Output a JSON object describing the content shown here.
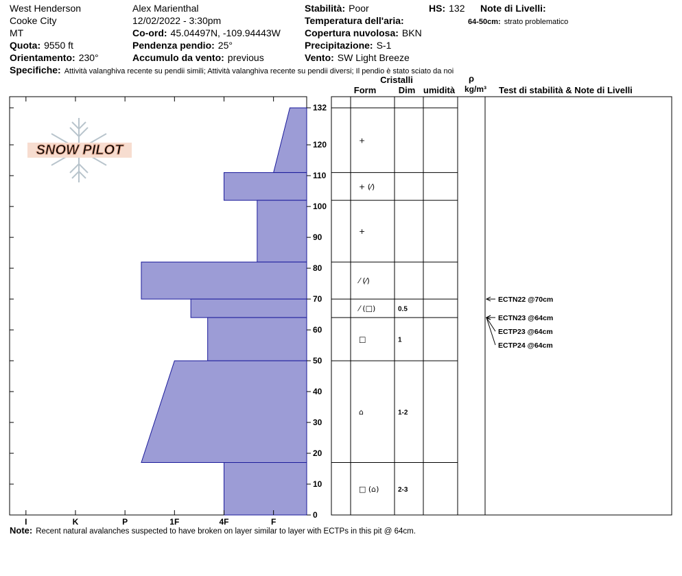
{
  "header": {
    "site": "West Henderson",
    "area": "Cooke City",
    "state": "MT",
    "elevation": {
      "label": "Quota:",
      "value": "9550 ft"
    },
    "aspect": {
      "label": "Orientamento:",
      "value": "230°"
    },
    "observer": "Alex Marienthal",
    "datetime": "12/02/2022 - 3:30pm",
    "coordinates": {
      "label": "Co-ord:",
      "value": "45.04497N, -109.94443W"
    },
    "slope": {
      "label": "Pendenza pendio:",
      "value": "25°"
    },
    "wind_loading": {
      "label": "Accumulo da vento:",
      "value": "previous"
    },
    "stability": {
      "label": "Stabilità:",
      "value": "Poor"
    },
    "hs": {
      "label": "HS:",
      "value": 132
    },
    "air_temperature": {
      "label": "Temperatura dell'aria:"
    },
    "sky": {
      "label": "Copertura nuvolosa:",
      "value": "BKN"
    },
    "precipitation": {
      "label": "Precipitazione:",
      "value": "S-1"
    },
    "wind": {
      "label": "Vento:",
      "value": "SW Light Breeze"
    },
    "layer_notes": {
      "label": "Note di Livelli:",
      "items": [
        {
          "label": "64-50cm:",
          "value": "strato problematico"
        }
      ]
    },
    "specifics": {
      "label": "Specifiche:",
      "value": "Attività valanghiva recente su pendii simili;  Attività valanghiva recente su pendii diversi;  Il pendio è stato sciato da noi"
    }
  },
  "logo": "SNOW PILOT",
  "chart_data": {
    "type": "profile",
    "color": "#9c9cd6",
    "edge_color": "#1a1a9a",
    "xlim": [
      6.33,
      0.33
    ],
    "xticks": [
      {
        "value": 6,
        "label": "I"
      },
      {
        "value": 5,
        "label": "K"
      },
      {
        "value": 4,
        "label": "P"
      },
      {
        "value": 3,
        "label": "1F"
      },
      {
        "value": 2,
        "label": "4F"
      },
      {
        "value": 1,
        "label": "F"
      }
    ],
    "ylim": [
      0,
      135.6
    ],
    "yticks": [
      0,
      10,
      20,
      30,
      40,
      50,
      60,
      70,
      80,
      90,
      100,
      110,
      120,
      132
    ],
    "layers": [
      {
        "top": 132,
        "bottom": 111,
        "hardness_top": 0.67,
        "hardness_bottom": 1
      },
      {
        "top": 111,
        "bottom": 102,
        "hardness_top": 2,
        "hardness_bottom": 2
      },
      {
        "top": 102,
        "bottom": 82,
        "hardness_top": 1.33,
        "hardness_bottom": 1.33
      },
      {
        "top": 82,
        "bottom": 70,
        "hardness_top": 3.67,
        "hardness_bottom": 3.67
      },
      {
        "top": 70,
        "bottom": 64,
        "hardness_top": 2.67,
        "hardness_bottom": 2.67
      },
      {
        "top": 64,
        "bottom": 50,
        "hardness_top": 2.33,
        "hardness_bottom": 2.33
      },
      {
        "top": 50,
        "bottom": 17,
        "hardness_top": 3,
        "hardness_bottom": 3.67
      },
      {
        "top": 17,
        "bottom": 0,
        "hardness_top": 2,
        "hardness_bottom": 2
      }
    ]
  },
  "layers_table": {
    "headers": {
      "crystals": "Cristalli",
      "form": "Form",
      "size": "Dim",
      "moisture": "umidità",
      "density_symbol": "ρ",
      "density_unit": "kg/m³",
      "tests": "Test di stabilità & Note di Livelli"
    },
    "rows": [
      {
        "form": "+"
      },
      {
        "form": "+ (⁄)"
      },
      {
        "form": "+"
      },
      {
        "form": "⁄ (⁄)"
      },
      {
        "form": "⁄ (□)",
        "size": "0.5"
      },
      {
        "form": "□",
        "size": "1"
      },
      {
        "form": "⌂",
        "size": "1-2"
      },
      {
        "form": "□ (⌂)",
        "size": "2-3"
      }
    ]
  },
  "tests": [
    {
      "label": "ECTN22 @70cm",
      "depth": 70
    },
    {
      "label": "ECTN23 @64cm",
      "depth": 64
    },
    {
      "label": "ECTP23 @64cm",
      "depth": 64
    },
    {
      "label": "ECTP24 @64cm",
      "depth": 64
    }
  ],
  "note": {
    "label": "Note:",
    "value": "Recent natural avalanches suspected to have broken on layer similar to layer with ECTPs in this pit @ 64cm."
  }
}
